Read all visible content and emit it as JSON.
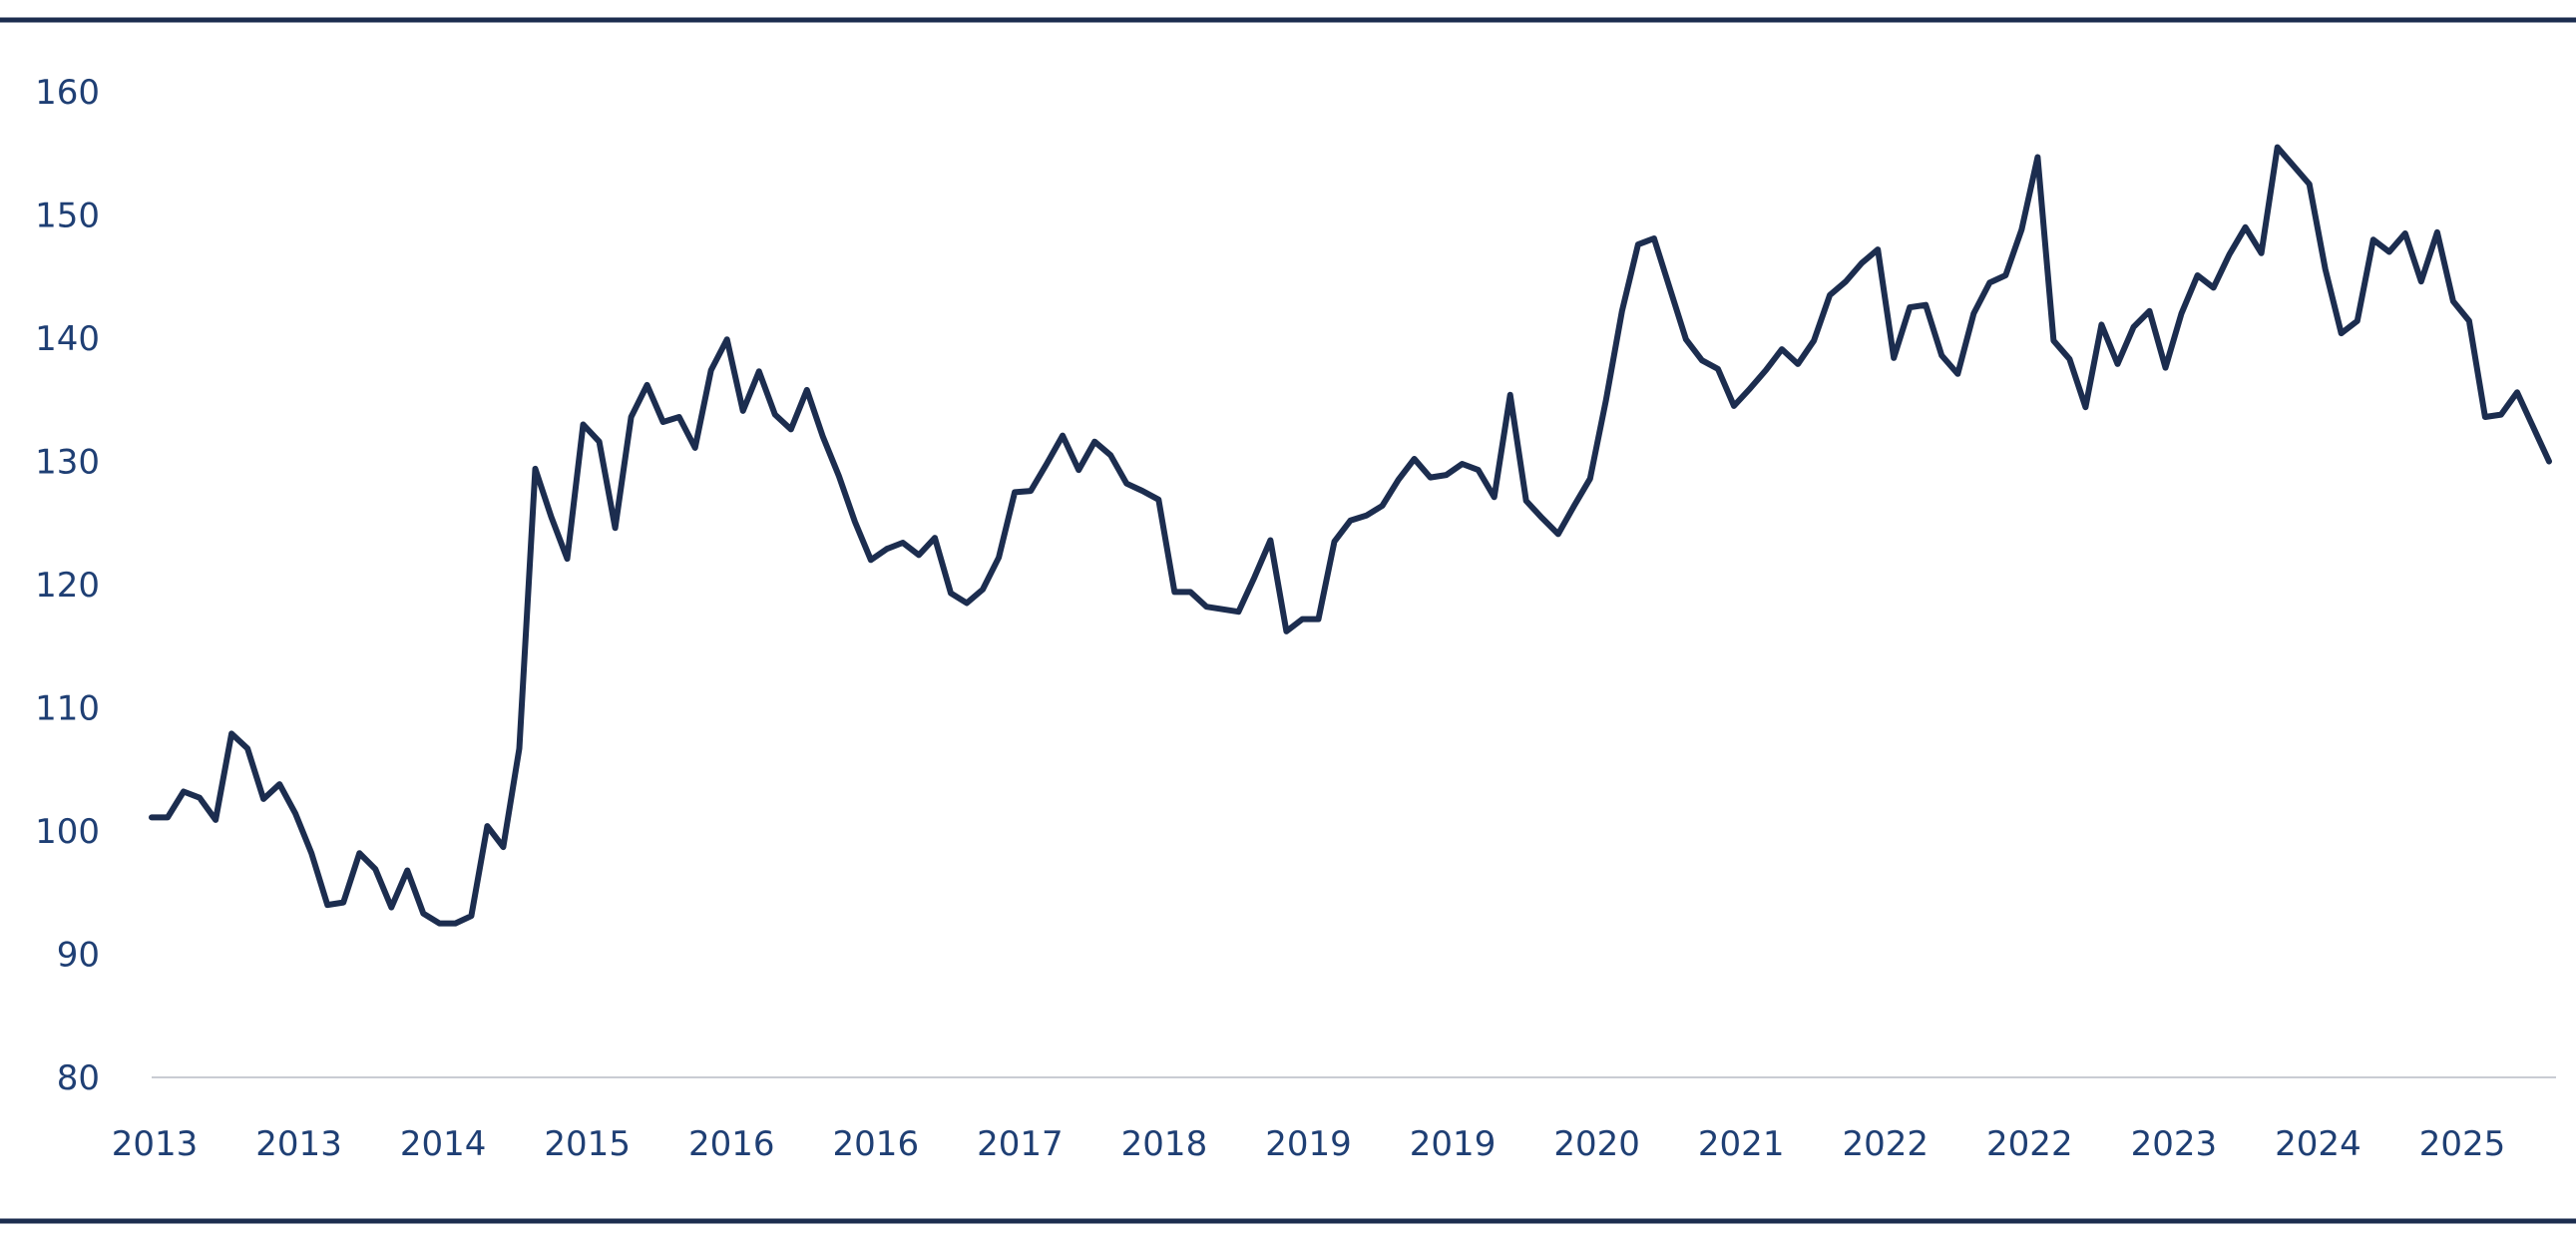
{
  "chart_data": {
    "type": "line",
    "title": "",
    "xlabel": "",
    "ylabel": "",
    "ylim": [
      80,
      160
    ],
    "y_ticks": [
      "80",
      "90",
      "100",
      "110",
      "120",
      "130",
      "140",
      "150",
      "160"
    ],
    "x_tick_labels": [
      "2013",
      "2013",
      "2014",
      "2015",
      "2016",
      "2016",
      "2017",
      "2018",
      "2019",
      "2019",
      "2020",
      "2021",
      "2022",
      "2022",
      "2023",
      "2024",
      "2025"
    ],
    "grid": false,
    "legend": "none",
    "colors": {
      "line": "#1c2d4f",
      "text": "#1f3f74",
      "frame": "#1c2d4f",
      "baseline": "#c9ccd3"
    },
    "series": [
      {
        "x_start": "2013-01",
        "frequency": "monthly",
        "values": [
          101.1,
          101.1,
          103.2,
          102.7,
          100.9,
          107.9,
          106.7,
          102.6,
          103.8,
          101.4,
          98.2,
          94.0,
          94.2,
          98.2,
          96.9,
          93.8,
          96.8,
          93.3,
          92.5,
          92.5,
          93.1,
          100.4,
          98.7,
          106.7,
          129.4,
          125.5,
          122.1,
          133.0,
          131.6,
          124.6,
          133.6,
          136.2,
          133.2,
          133.6,
          131.1,
          137.4,
          139.9,
          134.1,
          137.3,
          133.8,
          132.6,
          135.8,
          132.0,
          128.8,
          125.1,
          122.0,
          122.9,
          123.4,
          122.4,
          123.8,
          119.3,
          118.5,
          119.6,
          122.2,
          127.5,
          127.6,
          129.8,
          132.1,
          129.3,
          131.6,
          130.5,
          128.2,
          127.6,
          126.9,
          119.4,
          119.4,
          118.2,
          118.0,
          117.8,
          120.6,
          123.6,
          116.2,
          117.2,
          117.2,
          123.5,
          125.2,
          125.6,
          126.4,
          128.5,
          130.2,
          128.7,
          128.9,
          129.8,
          129.3,
          127.1,
          135.4,
          126.8,
          125.4,
          124.1,
          126.4,
          128.6,
          135.0,
          142.2,
          147.6,
          148.1,
          144.0,
          139.9,
          138.2,
          137.5,
          134.5,
          135.9,
          137.4,
          139.1,
          137.9,
          139.8,
          143.5,
          144.6,
          146.1,
          147.2,
          138.4,
          142.5,
          142.7,
          138.6,
          137.1,
          142.0,
          144.5,
          145.1,
          148.8,
          154.7,
          139.8,
          138.3,
          134.4,
          141.1,
          137.9,
          140.9,
          142.2,
          137.6,
          142.0,
          145.1,
          144.1,
          146.8,
          149.0,
          146.9,
          155.5,
          154.0,
          152.5,
          145.6,
          140.4,
          141.4,
          148.0,
          147.0,
          148.5,
          144.6,
          148.6,
          143.0,
          141.4,
          133.6,
          133.8,
          135.6,
          132.8,
          130.0
        ]
      }
    ]
  }
}
